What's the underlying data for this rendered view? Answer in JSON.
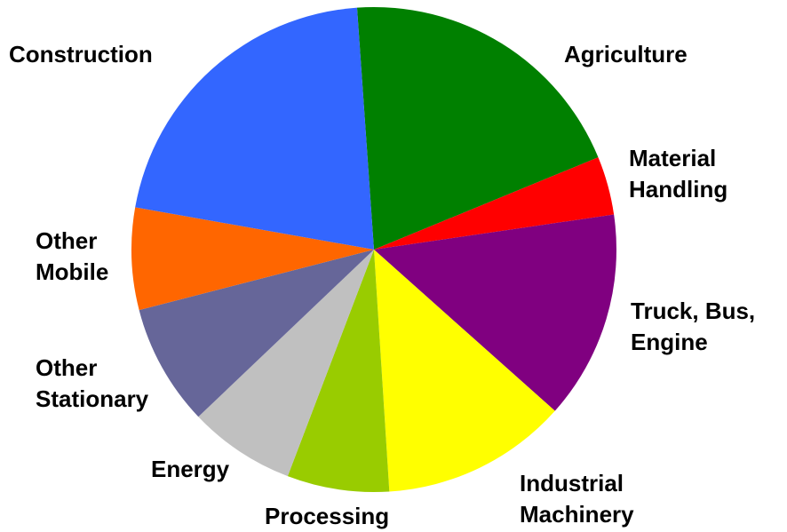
{
  "chart_data": {
    "type": "pie",
    "categories": [
      "Agriculture",
      "Material\nHandling",
      "Truck, Bus,\nEngine",
      "Industrial\nMachinery",
      "Processing",
      "Energy",
      "Other\nStationary",
      "Other\nMobile",
      "Construction"
    ],
    "values": [
      19.9,
      3.9,
      13.9,
      12.4,
      6.8,
      7.1,
      8.1,
      6.8,
      21.1
    ],
    "colors": [
      "#008000",
      "#ff0000",
      "#800080",
      "#ffff00",
      "#99cc00",
      "#c0c0c0",
      "#666699",
      "#ff6600",
      "#3366ff"
    ],
    "start_angle": -4
  }
}
